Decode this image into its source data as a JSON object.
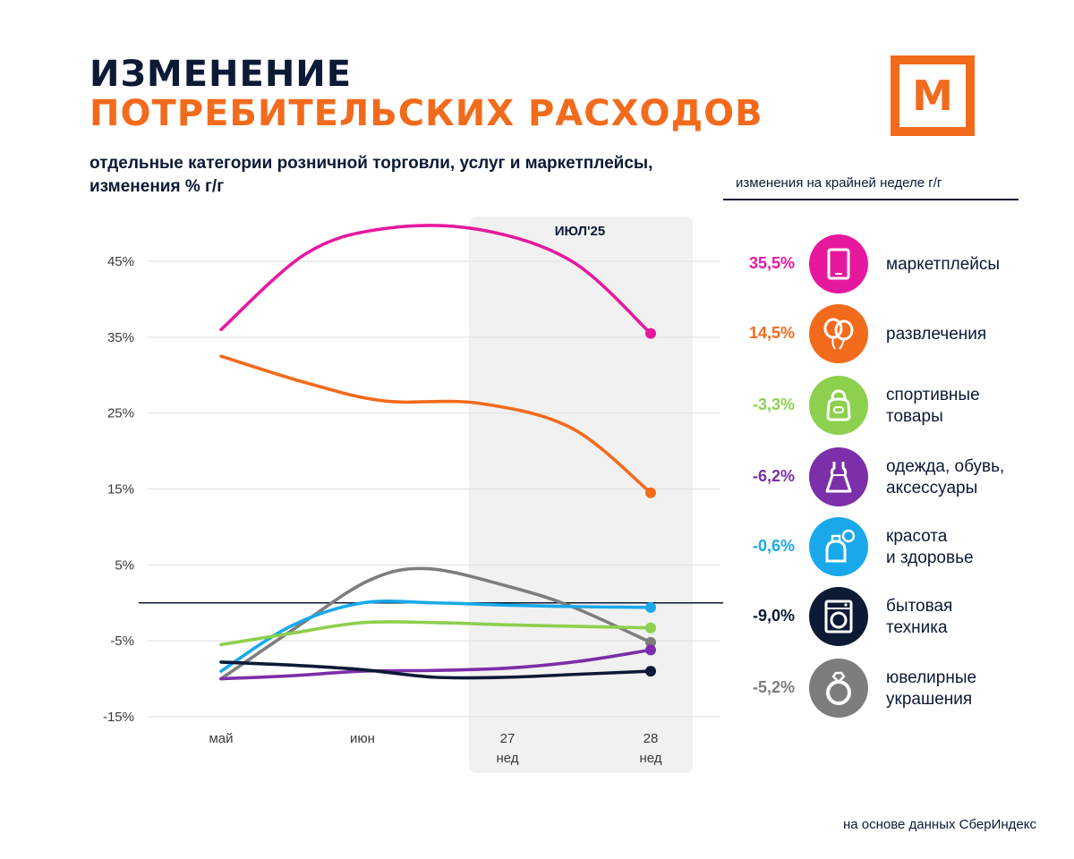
{
  "header": {
    "title_line1": "ИЗМЕНЕНИЕ",
    "title_line2": "ПОТРЕБИТЕЛЬСКИХ РАСХОДОВ",
    "subtitle_line1": "отдельные категории розничной торговли, услуг  и маркетплейсы,",
    "subtitle_line2": "изменения % г/г",
    "logo_letter": "М"
  },
  "legend": {
    "title": "изменения на крайней неделе г/г",
    "items": [
      {
        "value": "35,5%",
        "label1": "маркетплейсы",
        "label2": "",
        "color": "#e6199e",
        "icon": "tablet-icon"
      },
      {
        "value": "14,5%",
        "label1": "развлечения",
        "label2": "",
        "color": "#f26b1d",
        "icon": "balloons-icon"
      },
      {
        "value": "-3,3%",
        "label1": "спортивные",
        "label2": "товары",
        "color": "#8cd04e",
        "icon": "kettlebell-icon"
      },
      {
        "value": "-6,2%",
        "label1": "одежда, обувь,",
        "label2": "аксессуары",
        "color": "#7b2fa8",
        "icon": "dress-icon"
      },
      {
        "value": "-0,6%",
        "label1": "красота",
        "label2": "и здоровье",
        "color": "#19a9ea",
        "icon": "perfume-icon"
      },
      {
        "value": "-9,0%",
        "label1": "бытовая",
        "label2": "техника",
        "color": "#0c1a36",
        "icon": "washing-machine-icon"
      },
      {
        "value": "-5,2%",
        "label1": "ювелирные",
        "label2": "украшения",
        "color": "#7d7d7d",
        "icon": "ring-icon"
      }
    ]
  },
  "source": "на основе данных СберИндекс",
  "chart_data": {
    "type": "line",
    "title": "ИЗМЕНЕНИЕ ПОТРЕБИТЕЛЬСКИХ РАСХОДОВ",
    "ylabel": "изменения % г/г",
    "ylim": [
      -15,
      50
    ],
    "yticks": [
      45,
      35,
      25,
      15,
      5,
      -5,
      -15
    ],
    "ytick_labels": [
      "45%",
      "35%",
      "25%",
      "15%",
      "5%",
      "-5%",
      "-15%"
    ],
    "x_categories": [
      {
        "line1": "май",
        "line2": ""
      },
      {
        "line1": "июн",
        "line2": ""
      },
      {
        "line1": "27",
        "line2": "нед"
      },
      {
        "line1": "28",
        "line2": "нед"
      }
    ],
    "highlight_label": "ИЮЛ'25",
    "zero_line": 0,
    "series": [
      {
        "name": "маркетплейсы",
        "color": "#e6199e",
        "x": [
          0,
          0.6,
          1.15,
          1.8,
          2.45,
          3
        ],
        "values": [
          36,
          46,
          49.3,
          49.2,
          45,
          35.5
        ]
      },
      {
        "name": "развлечения",
        "color": "#f26b1d",
        "x": [
          0,
          0.6,
          1.15,
          1.8,
          2.45,
          3
        ],
        "values": [
          32.5,
          29,
          26.6,
          26.3,
          23,
          14.5
        ]
      },
      {
        "name": "ювелирные украшения",
        "color": "#7d7d7d",
        "x": [
          0,
          0.55,
          1.05,
          1.45,
          2,
          2.45,
          3
        ],
        "values": [
          -10,
          -3,
          3,
          4.5,
          2.2,
          -0.5,
          -5.2
        ]
      },
      {
        "name": "красота и здоровье",
        "color": "#19a9ea",
        "x": [
          0,
          0.5,
          1,
          1.5,
          2,
          2.5,
          3
        ],
        "values": [
          -9,
          -3,
          0,
          0,
          -0.3,
          -0.5,
          -0.6
        ]
      },
      {
        "name": "спортивные товары",
        "color": "#8cd04e",
        "x": [
          0,
          0.5,
          1,
          1.5,
          2,
          2.5,
          3
        ],
        "values": [
          -5.5,
          -4,
          -2.6,
          -2.6,
          -2.9,
          -3.1,
          -3.3
        ]
      },
      {
        "name": "одежда, обувь, аксессуары",
        "color": "#7b2fa8",
        "x": [
          0,
          0.5,
          1,
          1.5,
          2,
          2.5,
          3
        ],
        "values": [
          -10,
          -9.6,
          -9,
          -8.9,
          -8.6,
          -7.7,
          -6.2
        ]
      },
      {
        "name": "бытовая техника",
        "color": "#0c1a36",
        "x": [
          0,
          0.5,
          1,
          1.5,
          2,
          2.5,
          3
        ],
        "values": [
          -7.8,
          -8.2,
          -8.8,
          -9.8,
          -9.8,
          -9.4,
          -9.0
        ]
      }
    ],
    "end_markers": [
      {
        "name": "маркетплейсы",
        "value": 35.5
      },
      {
        "name": "развлечения",
        "value": 14.5
      },
      {
        "name": "красота и здоровье",
        "value": -0.6
      },
      {
        "name": "спортивные товары",
        "value": -3.3
      },
      {
        "name": "ювелирные украшения",
        "value": -5.2
      },
      {
        "name": "одежда, обувь, аксессуары",
        "value": -6.2
      },
      {
        "name": "бытовая техника",
        "value": -9.0
      }
    ]
  }
}
